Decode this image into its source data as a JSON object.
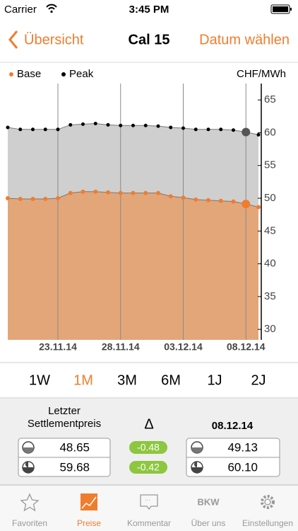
{
  "status_bar": {
    "carrier": "Carrier",
    "time": "3:45 PM"
  },
  "nav_bar": {
    "back": "Übersicht",
    "title": "Cal 15",
    "action": "Datum wählen"
  },
  "chart_data": {
    "type": "area",
    "unit": "CHF/MWh",
    "x": [
      "19.11.14",
      "20.11.14",
      "21.11.14",
      "22.11.14",
      "23.11.14",
      "24.11.14",
      "25.11.14",
      "26.11.14",
      "27.11.14",
      "28.11.14",
      "29.11.14",
      "30.11.14",
      "01.12.14",
      "02.12.14",
      "03.12.14",
      "04.12.14",
      "05.12.14",
      "06.12.14",
      "07.12.14",
      "08.12.14",
      "09.12.14"
    ],
    "series": [
      {
        "name": "Base",
        "color": "#ef7d2e",
        "area_color": "#e3a679",
        "values": [
          50.0,
          49.9,
          49.9,
          49.9,
          50.0,
          50.8,
          51.0,
          51.0,
          50.9,
          50.8,
          50.8,
          50.8,
          50.8,
          50.3,
          50.1,
          49.8,
          49.7,
          49.6,
          49.5,
          49.13,
          48.65
        ]
      },
      {
        "name": "Peak",
        "color": "#000000",
        "area_color": "#cfcfcf",
        "values": [
          60.8,
          60.5,
          60.5,
          60.5,
          60.5,
          61.2,
          61.3,
          61.4,
          61.2,
          61.1,
          61.1,
          61.1,
          61.0,
          60.8,
          60.7,
          60.5,
          60.5,
          60.5,
          60.4,
          60.1,
          59.68
        ]
      }
    ],
    "ylim": [
      28.4,
      67.5
    ],
    "yticks": [
      30,
      35,
      40,
      45,
      50,
      55,
      60,
      65
    ],
    "xticks": [
      "23.11.14",
      "28.11.14",
      "03.12.14",
      "08.12.14"
    ],
    "grid": true
  },
  "ranges": {
    "items": [
      "1W",
      "1M",
      "3M",
      "6M",
      "1J",
      "2J"
    ],
    "active": 1
  },
  "summary": {
    "last_label": "Letzter Settlementpreis",
    "delta_symbol": "Δ",
    "date": "08.12.14",
    "last": [
      "48.65",
      "59.68"
    ],
    "delta": [
      "-0.48",
      "-0.42"
    ],
    "selected": [
      "49.13",
      "60.10"
    ]
  },
  "tab_bar": {
    "items": [
      "Favoriten",
      "Preise",
      "Kommentar",
      "Über uns",
      "Einstellungen"
    ],
    "logo": "BKW",
    "active": 1
  }
}
